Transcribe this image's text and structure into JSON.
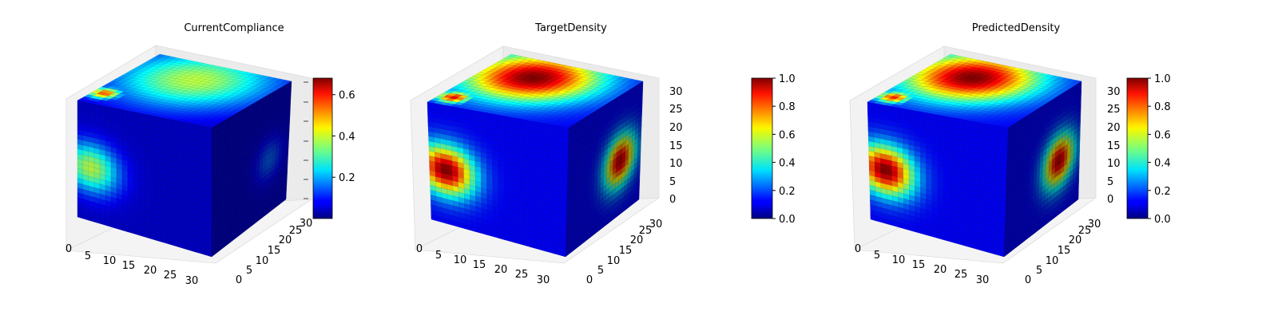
{
  "chart_data": [
    {
      "type": "voxel-3d",
      "title": "CurrentCompliance",
      "x_ticks": [
        "0",
        "5",
        "10",
        "15",
        "20",
        "25",
        "30"
      ],
      "y_ticks": [
        "0",
        "5",
        "10",
        "15",
        "20",
        "25",
        "30"
      ],
      "z_ticks": [],
      "grid_size": 32,
      "colormap": "jet",
      "colorbar": {
        "min": 0.0,
        "max": 0.68,
        "ticks": [
          "0.2",
          "0.4",
          "0.6"
        ],
        "tick_values": [
          0.2,
          0.4,
          0.6
        ]
      },
      "features": {
        "top": [
          {
            "u": 0.45,
            "v": 0.3,
            "r": 0.75,
            "peak": 0.38
          },
          {
            "u": 0.08,
            "v": 0.8,
            "r": 0.15,
            "peak": 0.55
          }
        ],
        "front": [
          {
            "u": 0.1,
            "v": 0.55,
            "r": 0.3,
            "peak": 0.38
          }
        ],
        "side": [
          {
            "u": 0.75,
            "v": 0.55,
            "r": 0.25,
            "peak": 0.15
          }
        ],
        "base": 0.05
      }
    },
    {
      "type": "voxel-3d",
      "title": "TargetDensity",
      "x_ticks": [
        "0",
        "5",
        "10",
        "15",
        "20",
        "25",
        "30"
      ],
      "y_ticks": [
        "0",
        "5",
        "10",
        "15",
        "20",
        "25",
        "30"
      ],
      "z_ticks": [
        "0",
        "5",
        "10",
        "15",
        "20",
        "25",
        "30"
      ],
      "grid_size": 32,
      "colormap": "jet",
      "colorbar": {
        "min": 0.0,
        "max": 1.0,
        "ticks": [
          "0.0",
          "0.2",
          "0.4",
          "0.6",
          "0.8",
          "1.0"
        ],
        "tick_values": [
          0.0,
          0.2,
          0.4,
          0.6,
          0.8,
          1.0
        ]
      },
      "features": {
        "top": [
          {
            "u": 0.35,
            "v": 0.3,
            "r": 0.65,
            "peak": 1.0
          },
          {
            "u": 0.1,
            "v": 0.85,
            "r": 0.15,
            "peak": 0.9
          }
        ],
        "front": [
          {
            "u": 0.12,
            "v": 0.55,
            "r": 0.3,
            "peak": 1.0
          }
        ],
        "side": [
          {
            "u": 0.72,
            "v": 0.55,
            "r": 0.3,
            "peak": 0.95
          }
        ],
        "base": 0.12
      }
    },
    {
      "type": "voxel-3d",
      "title": "PredictedDensity",
      "x_ticks": [
        "0",
        "5",
        "10",
        "15",
        "20",
        "25",
        "30"
      ],
      "y_ticks": [
        "0",
        "5",
        "10",
        "15",
        "20",
        "25",
        "30"
      ],
      "z_ticks": [
        "0",
        "5",
        "10",
        "15",
        "20",
        "25",
        "30"
      ],
      "grid_size": 32,
      "colormap": "jet",
      "colorbar": {
        "min": 0.0,
        "max": 1.0,
        "ticks": [
          "0.0",
          "0.2",
          "0.4",
          "0.6",
          "0.8",
          "1.0"
        ],
        "tick_values": [
          0.0,
          0.2,
          0.4,
          0.6,
          0.8,
          1.0
        ]
      },
      "features": {
        "top": [
          {
            "u": 0.35,
            "v": 0.3,
            "r": 0.65,
            "peak": 1.0
          },
          {
            "u": 0.1,
            "v": 0.85,
            "r": 0.15,
            "peak": 0.85
          }
        ],
        "front": [
          {
            "u": 0.12,
            "v": 0.55,
            "r": 0.3,
            "peak": 1.0
          }
        ],
        "side": [
          {
            "u": 0.72,
            "v": 0.55,
            "r": 0.3,
            "peak": 0.95
          }
        ],
        "base": 0.12
      }
    }
  ]
}
